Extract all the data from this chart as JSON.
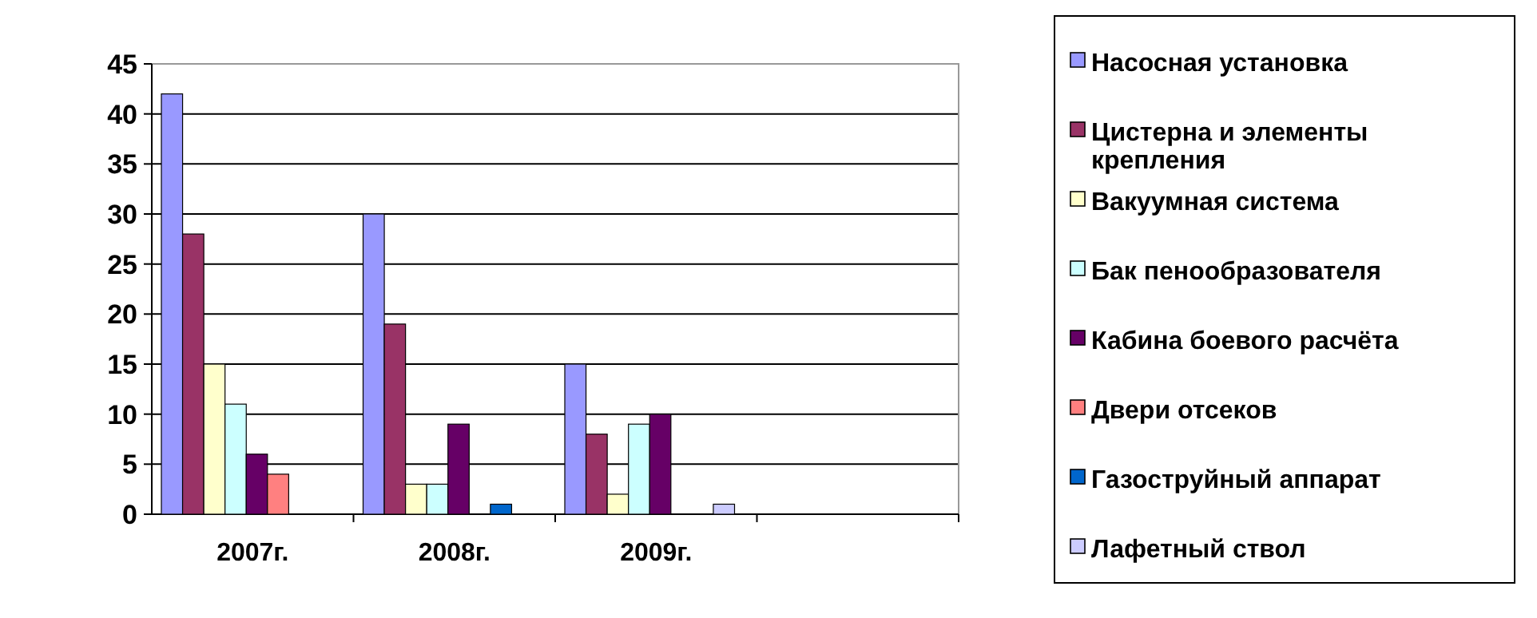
{
  "chart_data": {
    "type": "bar",
    "categories": [
      "2007г.",
      "2008г.",
      "2009г.",
      null
    ],
    "series": [
      {
        "name": "Насосная установка",
        "color": "#9999ff",
        "values": [
          42,
          30,
          15,
          null
        ]
      },
      {
        "name": "Цистерна и элементы крепления",
        "color": "#993366",
        "values": [
          28,
          19,
          8,
          null
        ]
      },
      {
        "name": "Вакуумная система",
        "color": "#ffffcc",
        "values": [
          15,
          3,
          2,
          null
        ]
      },
      {
        "name": "Бак пенообразователя",
        "color": "#ccffff",
        "values": [
          11,
          3,
          9,
          null
        ]
      },
      {
        "name": "Кабина боевого расчёта",
        "color": "#660066",
        "values": [
          6,
          9,
          10,
          null
        ]
      },
      {
        "name": "Двери отсеков",
        "color": "#ff8080",
        "values": [
          4,
          null,
          null,
          null
        ]
      },
      {
        "name": "Газоструйный аппарат",
        "color": "#0066cc",
        "values": [
          null,
          1,
          null,
          null
        ]
      },
      {
        "name": "Лафетный ствол",
        "color": "#ccccff",
        "values": [
          null,
          null,
          1,
          null
        ]
      }
    ],
    "ylim": [
      0,
      45
    ],
    "yticks": [
      0,
      5,
      10,
      15,
      20,
      25,
      30,
      35,
      40,
      45
    ],
    "grid": "y",
    "legend": "right"
  }
}
